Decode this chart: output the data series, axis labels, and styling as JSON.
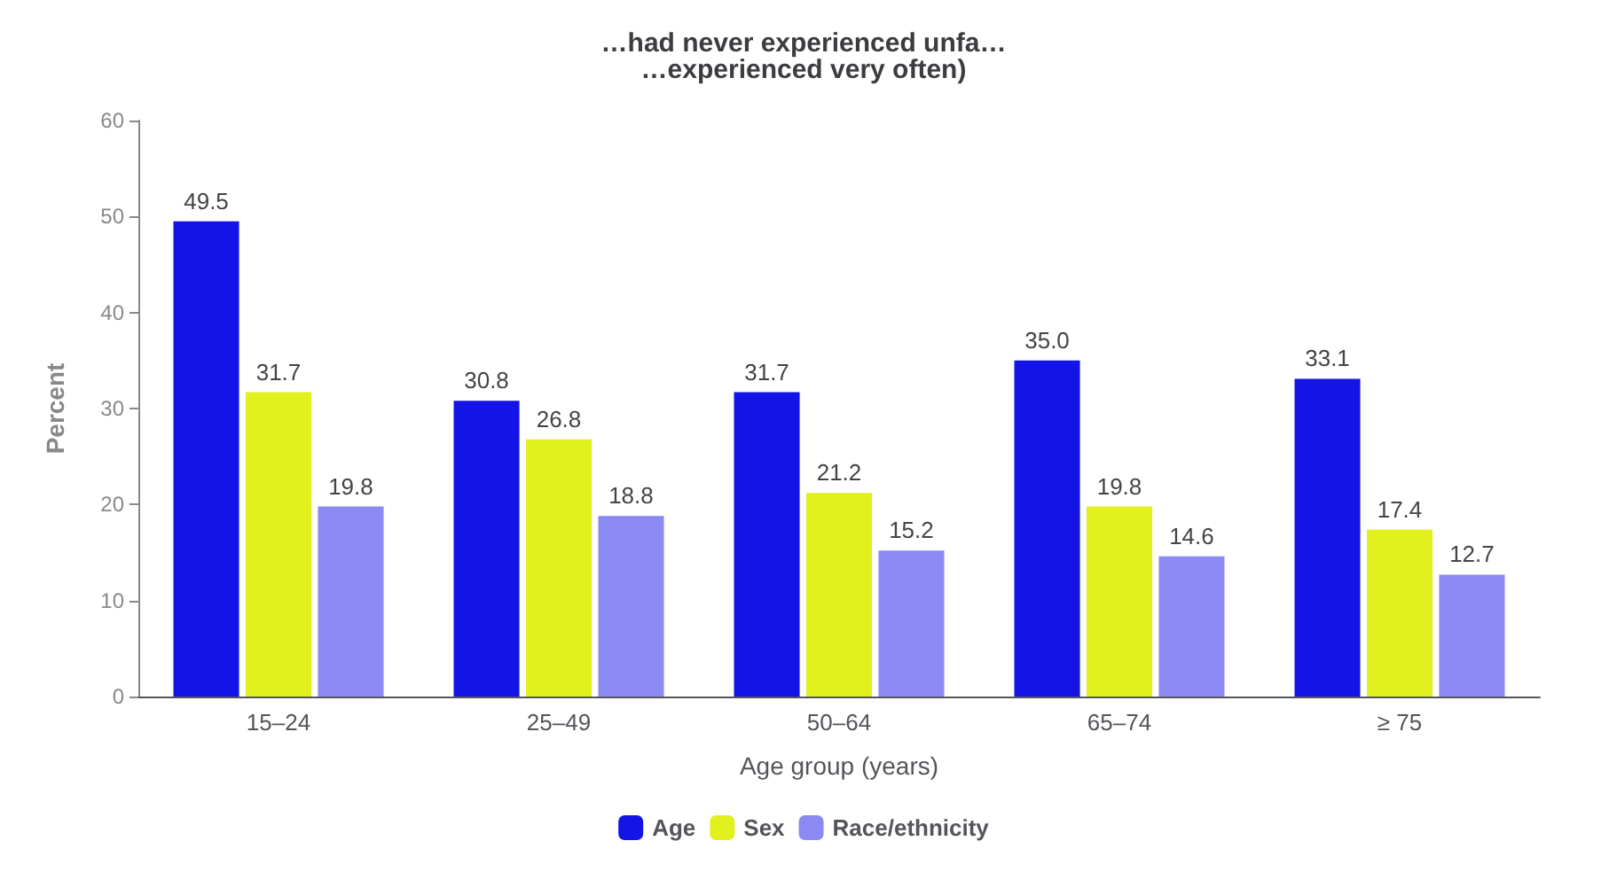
{
  "chart_data": {
    "type": "bar",
    "title": "…had never experienced unfa…\n…experienced very often)",
    "xlabel": "Age group (years)",
    "ylabel": "Percent",
    "categories": [
      "15–24",
      "25–49",
      "50–64",
      "65–74",
      "≥ 75"
    ],
    "series": [
      {
        "name": "Age",
        "color": "#1414e6",
        "values": [
          49.5,
          30.8,
          31.7,
          35.0,
          33.1
        ]
      },
      {
        "name": "Sex",
        "color": "#e2f01e",
        "values": [
          31.7,
          26.8,
          21.2,
          19.8,
          17.4
        ]
      },
      {
        "name": "Race/ethnicity",
        "color": "#8a8af2",
        "values": [
          19.8,
          18.8,
          15.2,
          14.6,
          12.7
        ]
      }
    ],
    "value_labels": [
      [
        "49.5",
        "30.8",
        "31.7",
        "35.0",
        "33.1"
      ],
      [
        "31.7",
        "26.8",
        "21.2",
        "19.8",
        "17.4"
      ],
      [
        "19.8",
        "18.8",
        "15.2",
        "14.6",
        "12.7"
      ]
    ],
    "ylim": [
      0,
      60
    ],
    "yticks": [
      0,
      10,
      20,
      30,
      40,
      50,
      60
    ],
    "grid": false,
    "legend": "bottom"
  }
}
